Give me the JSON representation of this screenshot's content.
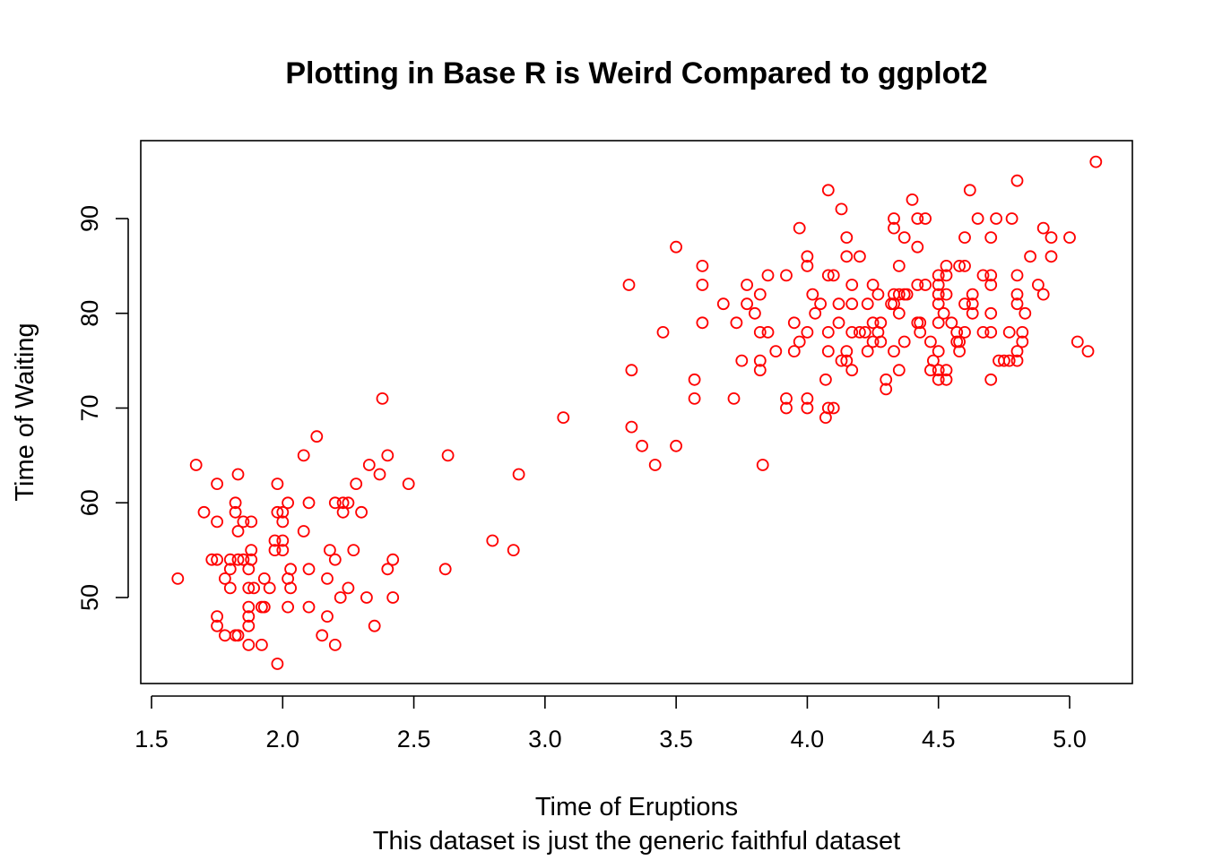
{
  "chart_data": {
    "type": "scatter",
    "title": "Plotting in Base R is Weird Compared to ggplot2",
    "xlabel": "Time of Eruptions",
    "subtitle": "This dataset is just the generic faithful dataset",
    "ylabel": "Time of Waiting",
    "xlim": [
      1.5,
      5.1
    ],
    "ylim": [
      43,
      96
    ],
    "x_ticks": [
      "1.5",
      "2.0",
      "2.5",
      "3.0",
      "3.5",
      "4.0",
      "4.5",
      "5.0"
    ],
    "y_ticks": [
      "50",
      "60",
      "70",
      "80",
      "90"
    ],
    "grid": false,
    "marker": "open-circle",
    "point_color": "#ff0000",
    "points": [
      [
        1.6,
        52
      ],
      [
        1.67,
        64
      ],
      [
        1.7,
        59
      ],
      [
        1.73,
        54
      ],
      [
        1.75,
        54
      ],
      [
        1.75,
        62
      ],
      [
        1.75,
        58
      ],
      [
        1.75,
        48
      ],
      [
        1.75,
        47
      ],
      [
        1.78,
        52
      ],
      [
        1.78,
        46
      ],
      [
        1.8,
        54
      ],
      [
        1.8,
        53
      ],
      [
        1.8,
        51
      ],
      [
        1.82,
        60
      ],
      [
        1.82,
        59
      ],
      [
        1.82,
        46
      ],
      [
        1.83,
        63
      ],
      [
        1.83,
        57
      ],
      [
        1.83,
        54
      ],
      [
        1.83,
        46
      ],
      [
        1.85,
        58
      ],
      [
        1.85,
        54
      ],
      [
        1.87,
        51
      ],
      [
        1.87,
        53
      ],
      [
        1.87,
        49
      ],
      [
        1.87,
        48
      ],
      [
        1.87,
        47
      ],
      [
        1.87,
        45
      ],
      [
        1.88,
        58
      ],
      [
        1.88,
        55
      ],
      [
        1.88,
        54
      ],
      [
        1.89,
        51
      ],
      [
        1.92,
        49
      ],
      [
        1.92,
        45
      ],
      [
        1.93,
        52
      ],
      [
        1.93,
        49
      ],
      [
        1.95,
        51
      ],
      [
        1.97,
        56
      ],
      [
        1.97,
        55
      ],
      [
        1.98,
        62
      ],
      [
        1.98,
        59
      ],
      [
        1.98,
        43
      ],
      [
        2.0,
        59
      ],
      [
        2.0,
        58
      ],
      [
        2.0,
        56
      ],
      [
        2.0,
        55
      ],
      [
        2.02,
        60
      ],
      [
        2.02,
        52
      ],
      [
        2.02,
        49
      ],
      [
        2.03,
        53
      ],
      [
        2.03,
        51
      ],
      [
        2.08,
        65
      ],
      [
        2.08,
        57
      ],
      [
        2.1,
        60
      ],
      [
        2.1,
        53
      ],
      [
        2.1,
        49
      ],
      [
        2.13,
        67
      ],
      [
        2.15,
        46
      ],
      [
        2.17,
        52
      ],
      [
        2.17,
        48
      ],
      [
        2.18,
        55
      ],
      [
        2.2,
        60
      ],
      [
        2.2,
        54
      ],
      [
        2.2,
        45
      ],
      [
        2.22,
        50
      ],
      [
        2.23,
        60
      ],
      [
        2.23,
        59
      ],
      [
        2.25,
        60
      ],
      [
        2.25,
        51
      ],
      [
        2.27,
        55
      ],
      [
        2.28,
        62
      ],
      [
        2.3,
        59
      ],
      [
        2.32,
        50
      ],
      [
        2.33,
        64
      ],
      [
        2.35,
        47
      ],
      [
        2.37,
        63
      ],
      [
        2.38,
        71
      ],
      [
        2.4,
        65
      ],
      [
        2.4,
        53
      ],
      [
        2.42,
        54
      ],
      [
        2.42,
        50
      ],
      [
        2.48,
        62
      ],
      [
        2.62,
        53
      ],
      [
        2.63,
        65
      ],
      [
        2.8,
        56
      ],
      [
        2.88,
        55
      ],
      [
        2.9,
        63
      ],
      [
        3.07,
        69
      ],
      [
        3.32,
        83
      ],
      [
        3.33,
        74
      ],
      [
        3.33,
        68
      ],
      [
        3.37,
        66
      ],
      [
        3.42,
        64
      ],
      [
        3.45,
        78
      ],
      [
        3.5,
        87
      ],
      [
        3.5,
        66
      ],
      [
        3.57,
        73
      ],
      [
        3.57,
        71
      ],
      [
        3.6,
        85
      ],
      [
        3.6,
        83
      ],
      [
        3.6,
        79
      ],
      [
        3.68,
        81
      ],
      [
        3.72,
        71
      ],
      [
        3.73,
        79
      ],
      [
        3.75,
        75
      ],
      [
        3.77,
        83
      ],
      [
        3.77,
        81
      ],
      [
        3.8,
        80
      ],
      [
        3.82,
        82
      ],
      [
        3.82,
        78
      ],
      [
        3.82,
        75
      ],
      [
        3.82,
        74
      ],
      [
        3.83,
        64
      ],
      [
        3.85,
        84
      ],
      [
        3.85,
        78
      ],
      [
        3.88,
        76
      ],
      [
        3.92,
        84
      ],
      [
        3.92,
        71
      ],
      [
        3.92,
        70
      ],
      [
        3.95,
        79
      ],
      [
        3.95,
        76
      ],
      [
        3.97,
        89
      ],
      [
        3.97,
        77
      ],
      [
        4.0,
        86
      ],
      [
        4.0,
        85
      ],
      [
        4.0,
        78
      ],
      [
        4.0,
        71
      ],
      [
        4.0,
        70
      ],
      [
        4.02,
        82
      ],
      [
        4.03,
        80
      ],
      [
        4.05,
        81
      ],
      [
        4.07,
        73
      ],
      [
        4.07,
        69
      ],
      [
        4.08,
        93
      ],
      [
        4.08,
        84
      ],
      [
        4.08,
        78
      ],
      [
        4.08,
        76
      ],
      [
        4.08,
        70
      ],
      [
        4.1,
        84
      ],
      [
        4.1,
        70
      ],
      [
        4.12,
        81
      ],
      [
        4.12,
        79
      ],
      [
        4.13,
        91
      ],
      [
        4.13,
        75
      ],
      [
        4.15,
        88
      ],
      [
        4.15,
        86
      ],
      [
        4.15,
        76
      ],
      [
        4.15,
        75
      ],
      [
        4.17,
        83
      ],
      [
        4.17,
        81
      ],
      [
        4.17,
        78
      ],
      [
        4.17,
        74
      ],
      [
        4.2,
        86
      ],
      [
        4.2,
        78
      ],
      [
        4.22,
        78
      ],
      [
        4.23,
        81
      ],
      [
        4.23,
        76
      ],
      [
        4.25,
        83
      ],
      [
        4.25,
        79
      ],
      [
        4.25,
        77
      ],
      [
        4.27,
        82
      ],
      [
        4.27,
        78
      ],
      [
        4.28,
        79
      ],
      [
        4.28,
        77
      ],
      [
        4.3,
        73
      ],
      [
        4.3,
        72
      ],
      [
        4.32,
        81
      ],
      [
        4.33,
        90
      ],
      [
        4.33,
        89
      ],
      [
        4.33,
        82
      ],
      [
        4.33,
        81
      ],
      [
        4.33,
        76
      ],
      [
        4.35,
        85
      ],
      [
        4.35,
        82
      ],
      [
        4.35,
        80
      ],
      [
        4.35,
        74
      ],
      [
        4.37,
        88
      ],
      [
        4.37,
        82
      ],
      [
        4.37,
        77
      ],
      [
        4.38,
        82
      ],
      [
        4.4,
        92
      ],
      [
        4.42,
        90
      ],
      [
        4.42,
        87
      ],
      [
        4.42,
        83
      ],
      [
        4.42,
        79
      ],
      [
        4.43,
        79
      ],
      [
        4.43,
        78
      ],
      [
        4.45,
        90
      ],
      [
        4.45,
        83
      ],
      [
        4.47,
        77
      ],
      [
        4.47,
        74
      ],
      [
        4.48,
        75
      ],
      [
        4.5,
        84
      ],
      [
        4.5,
        83
      ],
      [
        4.5,
        82
      ],
      [
        4.5,
        81
      ],
      [
        4.5,
        79
      ],
      [
        4.5,
        76
      ],
      [
        4.5,
        74
      ],
      [
        4.5,
        73
      ],
      [
        4.52,
        80
      ],
      [
        4.53,
        85
      ],
      [
        4.53,
        84
      ],
      [
        4.53,
        82
      ],
      [
        4.53,
        74
      ],
      [
        4.53,
        73
      ],
      [
        4.55,
        79
      ],
      [
        4.57,
        78
      ],
      [
        4.57,
        77
      ],
      [
        4.58,
        85
      ],
      [
        4.58,
        77
      ],
      [
        4.58,
        76
      ],
      [
        4.6,
        88
      ],
      [
        4.6,
        85
      ],
      [
        4.6,
        81
      ],
      [
        4.6,
        78
      ],
      [
        4.62,
        93
      ],
      [
        4.63,
        82
      ],
      [
        4.63,
        81
      ],
      [
        4.63,
        80
      ],
      [
        4.65,
        90
      ],
      [
        4.67,
        84
      ],
      [
        4.67,
        78
      ],
      [
        4.7,
        88
      ],
      [
        4.7,
        84
      ],
      [
        4.7,
        83
      ],
      [
        4.7,
        80
      ],
      [
        4.7,
        78
      ],
      [
        4.7,
        73
      ],
      [
        4.72,
        90
      ],
      [
        4.73,
        75
      ],
      [
        4.75,
        75
      ],
      [
        4.77,
        78
      ],
      [
        4.77,
        75
      ],
      [
        4.78,
        90
      ],
      [
        4.8,
        94
      ],
      [
        4.8,
        84
      ],
      [
        4.8,
        82
      ],
      [
        4.8,
        81
      ],
      [
        4.8,
        76
      ],
      [
        4.8,
        75
      ],
      [
        4.82,
        78
      ],
      [
        4.82,
        77
      ],
      [
        4.83,
        80
      ],
      [
        4.85,
        86
      ],
      [
        4.88,
        83
      ],
      [
        4.9,
        89
      ],
      [
        4.9,
        82
      ],
      [
        4.93,
        88
      ],
      [
        4.93,
        86
      ],
      [
        5.0,
        88
      ],
      [
        5.03,
        77
      ],
      [
        5.07,
        76
      ],
      [
        5.1,
        96
      ]
    ]
  }
}
